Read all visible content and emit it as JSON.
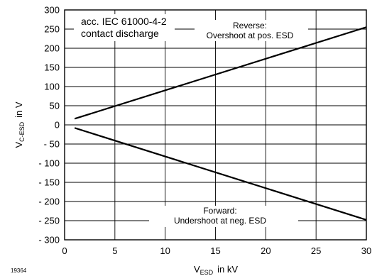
{
  "chart_data": {
    "type": "line",
    "figure_id": "19364",
    "xlabel": {
      "main": "V",
      "sub": "ESD",
      "unit": "in  kV"
    },
    "ylabel": {
      "main": "V",
      "sub": "C-ESD",
      "unit": "in  V"
    },
    "xlim": [
      0,
      30
    ],
    "ylim": [
      -300,
      300
    ],
    "xticks": [
      0,
      5,
      10,
      15,
      20,
      25,
      30
    ],
    "yticks": [
      300,
      250,
      200,
      150,
      100,
      50,
      0,
      -50,
      -100,
      -150,
      -200,
      -250,
      -300
    ],
    "ytick_labels": [
      "300",
      "250",
      "200",
      "150",
      "100",
      "50",
      "0",
      "- 50",
      "- 100",
      "- 150",
      "- 200",
      "- 250",
      "- 300"
    ],
    "grid": true,
    "series": [
      {
        "name": "Reverse",
        "x": [
          1,
          30
        ],
        "y": [
          16,
          255
        ]
      },
      {
        "name": "Forward",
        "x": [
          1,
          30
        ],
        "y": [
          -8,
          -248
        ]
      }
    ],
    "annotations": {
      "standard_line1": "acc. IEC 61000-4-2",
      "standard_line2": "contact discharge",
      "reverse_line1": "Reverse:",
      "reverse_line2": "Overshoot at pos. ESD",
      "forward_line1": "Forward:",
      "forward_line2": "Undershoot at neg. ESD"
    }
  }
}
